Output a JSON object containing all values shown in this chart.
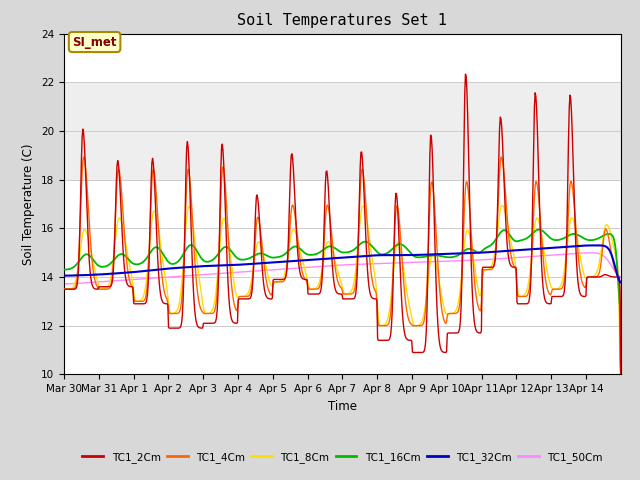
{
  "title": "Soil Temperatures Set 1",
  "xlabel": "Time",
  "ylabel": "Soil Temperature (C)",
  "ylim": [
    10,
    24
  ],
  "yticks": [
    10,
    12,
    14,
    16,
    18,
    20,
    22,
    24
  ],
  "fig_bg_color": "#d8d8d8",
  "plot_bg_color": "#ffffff",
  "annotation_text": "SI_met",
  "annotation_bg": "#ffffcc",
  "annotation_border": "#aa8800",
  "annotation_text_color": "#880000",
  "line_colors": {
    "TC1_2Cm": "#cc0000",
    "TC1_4Cm": "#ff6600",
    "TC1_8Cm": "#ffdd00",
    "TC1_16Cm": "#00bb00",
    "TC1_32Cm": "#0000cc",
    "TC1_50Cm": "#ff88ff"
  },
  "x_tick_labels": [
    "Mar 30",
    "Mar 31",
    "Apr 1",
    "Apr 2",
    "Apr 3",
    "Apr 4",
    "Apr 5",
    "Apr 6",
    "Apr 7",
    "Apr 8",
    "Apr 9",
    "Apr 10",
    "Apr 11",
    "Apr 12",
    "Apr 13",
    "Apr 14"
  ],
  "num_days": 16,
  "peak_heights_2cm": [
    20.1,
    18.8,
    18.9,
    19.6,
    19.5,
    17.4,
    19.1,
    18.4,
    19.2,
    17.5,
    19.9,
    22.4,
    20.6,
    21.6,
    21.5,
    14.1
  ],
  "trough_2cm": [
    13.5,
    13.6,
    12.9,
    11.9,
    12.1,
    13.1,
    13.9,
    13.3,
    13.1,
    11.4,
    10.9,
    11.7,
    14.4,
    12.9,
    13.2,
    14.0
  ],
  "peak_heights_4cm": [
    19.0,
    18.5,
    18.5,
    18.5,
    18.6,
    16.5,
    17.0,
    17.0,
    18.5,
    17.0,
    18.0,
    18.0,
    19.0,
    18.0,
    18.0,
    16.0
  ],
  "trough_4cm": [
    13.5,
    13.5,
    13.0,
    12.5,
    12.5,
    13.2,
    13.8,
    13.5,
    13.3,
    12.0,
    12.0,
    12.5,
    14.3,
    13.2,
    13.5,
    14.0
  ],
  "peak_heights_8cm": [
    16.0,
    16.5,
    16.8,
    17.0,
    16.5,
    15.5,
    16.0,
    15.5,
    17.0,
    15.5,
    15.0,
    16.0,
    17.0,
    16.5,
    16.5,
    16.2
  ],
  "base_16cm": [
    14.3,
    14.4,
    14.5,
    14.5,
    14.6,
    14.7,
    14.8,
    14.9,
    15.0,
    14.9,
    14.8,
    14.8,
    15.2,
    15.5,
    15.5,
    15.5
  ],
  "peak_16cm": [
    15.0,
    15.0,
    15.3,
    15.4,
    15.3,
    15.0,
    15.3,
    15.3,
    15.5,
    15.4,
    14.9,
    15.2,
    16.0,
    16.0,
    15.8,
    15.8
  ],
  "base_32cm": [
    14.05,
    14.1,
    14.2,
    14.35,
    14.45,
    14.5,
    14.6,
    14.7,
    14.8,
    14.9,
    14.9,
    14.95,
    15.0,
    15.1,
    15.2,
    15.3
  ],
  "base_50cm": [
    13.7,
    13.8,
    13.9,
    14.0,
    14.1,
    14.2,
    14.3,
    14.4,
    14.5,
    14.55,
    14.6,
    14.65,
    14.7,
    14.8,
    14.9,
    15.0
  ]
}
